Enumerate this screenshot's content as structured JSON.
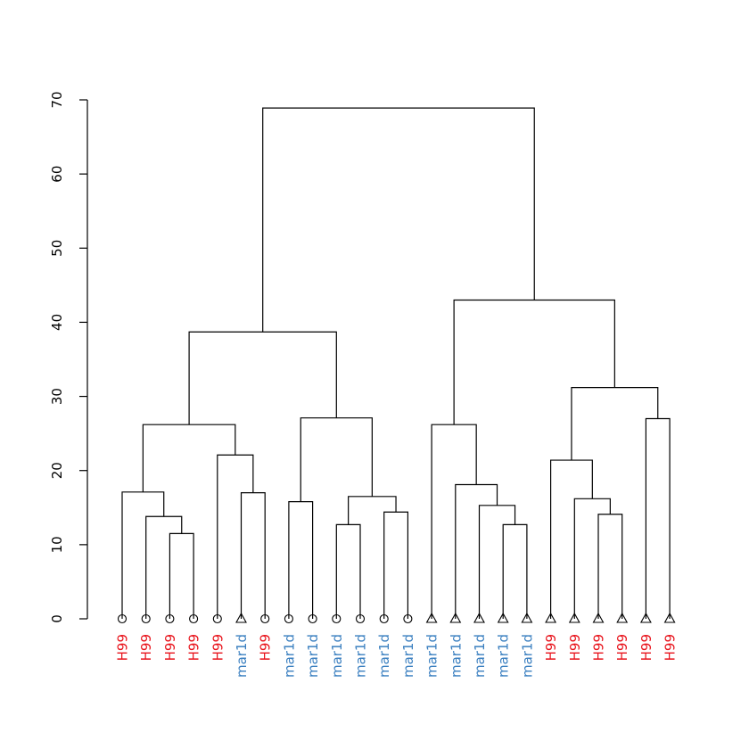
{
  "chart_data": {
    "type": "dendrogram",
    "ylim": [
      0,
      70
    ],
    "y_ticks": [
      0,
      10,
      20,
      30,
      40,
      50,
      60,
      70
    ],
    "colors": {
      "H99": "#e8131b",
      "mar1d": "#3a7fc0"
    },
    "leaves": [
      {
        "label": "H99",
        "group": "H99",
        "marker": "circle"
      },
      {
        "label": "H99",
        "group": "H99",
        "marker": "circle"
      },
      {
        "label": "H99",
        "group": "H99",
        "marker": "circle"
      },
      {
        "label": "H99",
        "group": "H99",
        "marker": "circle"
      },
      {
        "label": "H99",
        "group": "H99",
        "marker": "circle"
      },
      {
        "label": "mar1d",
        "group": "mar1d",
        "marker": "triangle"
      },
      {
        "label": "H99",
        "group": "H99",
        "marker": "circle"
      },
      {
        "label": "mar1d",
        "group": "mar1d",
        "marker": "circle"
      },
      {
        "label": "mar1d",
        "group": "mar1d",
        "marker": "circle"
      },
      {
        "label": "mar1d",
        "group": "mar1d",
        "marker": "circle"
      },
      {
        "label": "mar1d",
        "group": "mar1d",
        "marker": "circle"
      },
      {
        "label": "mar1d",
        "group": "mar1d",
        "marker": "circle"
      },
      {
        "label": "mar1d",
        "group": "mar1d",
        "marker": "circle"
      },
      {
        "label": "mar1d",
        "group": "mar1d",
        "marker": "triangle"
      },
      {
        "label": "mar1d",
        "group": "mar1d",
        "marker": "triangle"
      },
      {
        "label": "mar1d",
        "group": "mar1d",
        "marker": "triangle"
      },
      {
        "label": "mar1d",
        "group": "mar1d",
        "marker": "triangle"
      },
      {
        "label": "mar1d",
        "group": "mar1d",
        "marker": "triangle"
      },
      {
        "label": "H99",
        "group": "H99",
        "marker": "triangle"
      },
      {
        "label": "H99",
        "group": "H99",
        "marker": "triangle"
      },
      {
        "label": "H99",
        "group": "H99",
        "marker": "triangle"
      },
      {
        "label": "H99",
        "group": "H99",
        "marker": "triangle"
      },
      {
        "label": "H99",
        "group": "H99",
        "marker": "triangle"
      },
      {
        "label": "H99",
        "group": "H99",
        "marker": "triangle"
      }
    ],
    "merges": [
      {
        "left": 2,
        "right": 3,
        "height": 11.5
      },
      {
        "left": 1,
        "right": "m1",
        "height": 13.8
      },
      {
        "left": 0,
        "right": "m2",
        "height": 17.1
      },
      {
        "left": 5,
        "right": 6,
        "height": 17.0
      },
      {
        "left": 4,
        "right": "m4",
        "height": 22.1
      },
      {
        "left": "m3",
        "right": "m5",
        "height": 26.2
      },
      {
        "left": 7,
        "right": 8,
        "height": 15.8
      },
      {
        "left": 9,
        "right": 10,
        "height": 12.7
      },
      {
        "left": 11,
        "right": 12,
        "height": 14.4
      },
      {
        "left": "m8",
        "right": "m9",
        "height": 16.5
      },
      {
        "left": "m7",
        "right": "m10",
        "height": 27.1
      },
      {
        "left": "m6",
        "right": "m11",
        "height": 38.7
      },
      {
        "left": 16,
        "right": 17,
        "height": 12.7
      },
      {
        "left": 15,
        "right": "m13",
        "height": 15.3
      },
      {
        "left": 14,
        "right": "m14",
        "height": 18.1
      },
      {
        "left": 13,
        "right": "m15",
        "height": 26.2
      },
      {
        "left": 20,
        "right": 21,
        "height": 14.1
      },
      {
        "left": 19,
        "right": "m17",
        "height": 16.2
      },
      {
        "left": 18,
        "right": "m18",
        "height": 21.4
      },
      {
        "left": 22,
        "right": 23,
        "height": 27.0
      },
      {
        "left": "m19",
        "right": "m20",
        "height": 31.2
      },
      {
        "left": "m16",
        "right": "m21",
        "height": 43.0
      },
      {
        "left": "m12",
        "right": "m22",
        "height": 68.9
      }
    ]
  }
}
